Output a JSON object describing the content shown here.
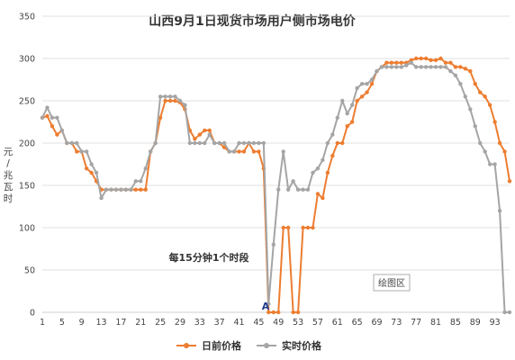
{
  "chart_data": {
    "type": "line",
    "title": "山西9月1日现货市场用户侧市场电价",
    "ylabel": "元/兆瓦时",
    "ylim": [
      0,
      350
    ],
    "yticks": [
      0,
      50,
      100,
      150,
      200,
      250,
      300,
      350
    ],
    "xticks": [
      "1",
      "5",
      "9",
      "13",
      "17",
      "21",
      "25",
      "29",
      "33",
      "37",
      "41",
      "45",
      "49",
      "53",
      "57",
      "61",
      "65",
      "69",
      "73",
      "77",
      "81",
      "85",
      "89",
      "93"
    ],
    "grid": true,
    "legend_position": "bottom",
    "annotations": [
      "每15分钟1个时段",
      "A",
      "绘图区"
    ],
    "x": [
      1,
      2,
      3,
      4,
      5,
      6,
      7,
      8,
      9,
      10,
      11,
      12,
      13,
      14,
      15,
      16,
      17,
      18,
      19,
      20,
      21,
      22,
      23,
      24,
      25,
      26,
      27,
      28,
      29,
      30,
      31,
      32,
      33,
      34,
      35,
      36,
      37,
      38,
      39,
      40,
      41,
      42,
      43,
      44,
      45,
      46,
      47,
      48,
      49,
      50,
      51,
      52,
      53,
      54,
      55,
      56,
      57,
      58,
      59,
      60,
      61,
      62,
      63,
      64,
      65,
      66,
      67,
      68,
      69,
      70,
      71,
      72,
      73,
      74,
      75,
      76,
      77,
      78,
      79,
      80,
      81,
      82,
      83,
      84,
      85,
      86,
      87,
      88,
      89,
      90,
      91,
      92,
      93,
      94,
      95,
      96
    ],
    "series": [
      {
        "name": "日前价格",
        "color": "#ED7D31",
        "values": [
          230,
          232,
          220,
          210,
          215,
          200,
          200,
          190,
          190,
          170,
          165,
          155,
          145,
          145,
          145,
          145,
          145,
          145,
          145,
          145,
          145,
          145,
          190,
          200,
          230,
          250,
          250,
          250,
          248,
          240,
          215,
          205,
          210,
          215,
          215,
          200,
          200,
          195,
          190,
          190,
          190,
          190,
          200,
          190,
          190,
          170,
          0,
          0,
          0,
          100,
          100,
          0,
          0,
          100,
          100,
          100,
          140,
          135,
          165,
          185,
          200,
          200,
          220,
          225,
          250,
          255,
          260,
          270,
          285,
          290,
          295,
          295,
          295,
          295,
          295,
          298,
          300,
          300,
          300,
          298,
          298,
          300,
          295,
          295,
          290,
          290,
          288,
          285,
          270,
          260,
          255,
          245,
          225,
          200,
          190,
          155
        ]
      },
      {
        "name": "实时价格",
        "color": "#A5A5A5",
        "values": [
          230,
          242,
          230,
          230,
          215,
          200,
          200,
          200,
          190,
          190,
          175,
          165,
          135,
          145,
          145,
          145,
          145,
          145,
          145,
          155,
          155,
          170,
          190,
          200,
          255,
          255,
          255,
          255,
          250,
          245,
          200,
          200,
          200,
          200,
          210,
          200,
          200,
          200,
          190,
          190,
          200,
          200,
          200,
          200,
          200,
          200,
          10,
          80,
          145,
          190,
          145,
          155,
          145,
          145,
          145,
          165,
          170,
          180,
          200,
          210,
          230,
          250,
          235,
          245,
          265,
          270,
          270,
          275,
          285,
          290,
          290,
          290,
          290,
          290,
          292,
          295,
          290,
          290,
          290,
          290,
          290,
          290,
          290,
          285,
          280,
          270,
          255,
          240,
          220,
          200,
          190,
          175,
          175,
          120,
          0,
          0
        ]
      }
    ]
  }
}
